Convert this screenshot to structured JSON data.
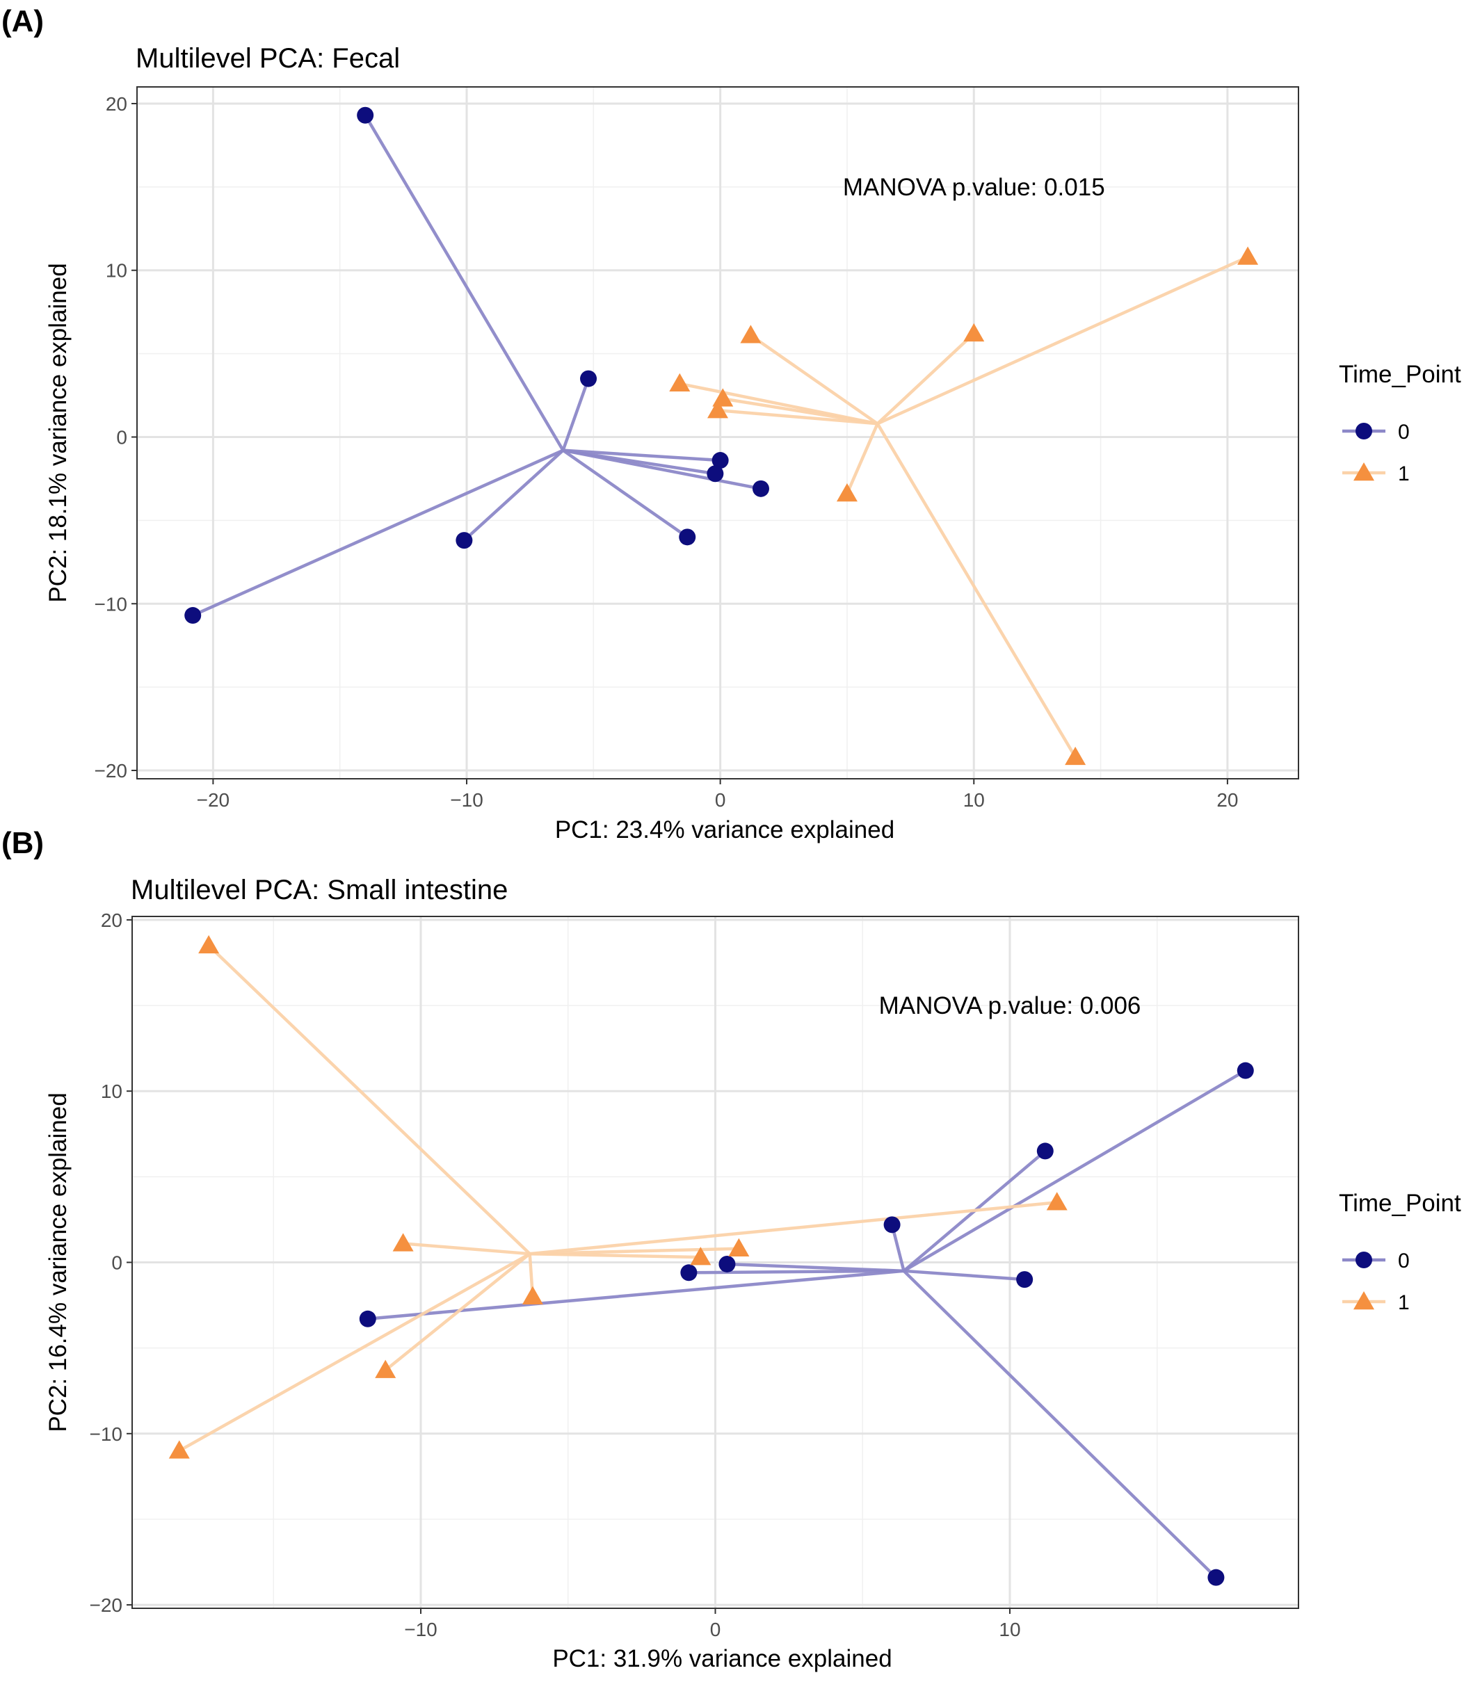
{
  "figure": {
    "panel_labels": [
      "(A)",
      "(B)"
    ],
    "legend_title": "Time_Point",
    "legend_items": [
      {
        "label": "0",
        "shape": "circle",
        "color": "#0d0d7d",
        "line_color": "#8c88c8"
      },
      {
        "label": "1",
        "shape": "triangle",
        "color": "#f5903f",
        "line_color": "#fbd2a9"
      }
    ]
  },
  "chart_data": [
    {
      "type": "scatter",
      "title": "Multilevel PCA: Fecal",
      "xlabel": "PC1: 23.4% variance explained",
      "ylabel": "PC2: 18.1% variance explained",
      "xlim": [
        -23,
        22.8
      ],
      "ylim": [
        -20.5,
        21
      ],
      "xticks": [
        -20,
        -10,
        0,
        10,
        20
      ],
      "yticks": [
        -20,
        -10,
        0,
        10,
        20
      ],
      "grid": true,
      "annotation": {
        "text": "MANOVA p.value: 0.015",
        "x": 10,
        "y": 15
      },
      "legend_position": "right",
      "series": [
        {
          "name": "0",
          "centroid": [
            -6.2,
            -0.8
          ],
          "points": [
            [
              -14,
              19.3
            ],
            [
              -5.2,
              3.5
            ],
            [
              0,
              -1.4
            ],
            [
              -0.2,
              -2.2
            ],
            [
              1.6,
              -3.1
            ],
            [
              -1.3,
              -6
            ],
            [
              -10.1,
              -6.2
            ],
            [
              -20.8,
              -10.7
            ]
          ]
        },
        {
          "name": "1",
          "centroid": [
            6.2,
            0.8
          ],
          "points": [
            [
              -1.6,
              3.2
            ],
            [
              0.1,
              2.3
            ],
            [
              -0.1,
              1.6
            ],
            [
              1.2,
              6.1
            ],
            [
              10,
              6.2
            ],
            [
              20.8,
              10.8
            ],
            [
              5,
              -3.4
            ],
            [
              14,
              -19.2
            ]
          ]
        }
      ]
    },
    {
      "type": "scatter",
      "title": "Multilevel PCA: Small intestine",
      "xlabel": "PC1: 31.9% variance explained",
      "ylabel": "PC2: 16.4% variance explained",
      "xlim": [
        -19.8,
        19.8
      ],
      "ylim": [
        -20.2,
        20.2
      ],
      "xticks": [
        -10,
        0,
        10
      ],
      "yticks": [
        -20,
        -10,
        0,
        10,
        20
      ],
      "grid": true,
      "annotation": {
        "text": "MANOVA p.value: 0.006",
        "x": 10,
        "y": 15
      },
      "legend_position": "right",
      "series": [
        {
          "name": "0",
          "centroid": [
            6.4,
            -0.5
          ],
          "points": [
            [
              18,
              11.2
            ],
            [
              11.2,
              6.5
            ],
            [
              6,
              2.2
            ],
            [
              10.5,
              -1
            ],
            [
              17,
              -18.4
            ],
            [
              0.4,
              -0.1
            ],
            [
              -0.9,
              -0.6
            ],
            [
              -11.8,
              -3.3
            ]
          ]
        },
        {
          "name": "1",
          "centroid": [
            -6.3,
            0.5
          ],
          "points": [
            [
              -17.2,
              18.5
            ],
            [
              -10.6,
              1.1
            ],
            [
              -0.5,
              0.3
            ],
            [
              0.8,
              0.8
            ],
            [
              11.6,
              3.5
            ],
            [
              -6.2,
              -2
            ],
            [
              -11.2,
              -6.3
            ],
            [
              -18.2,
              -11
            ]
          ]
        }
      ]
    }
  ]
}
